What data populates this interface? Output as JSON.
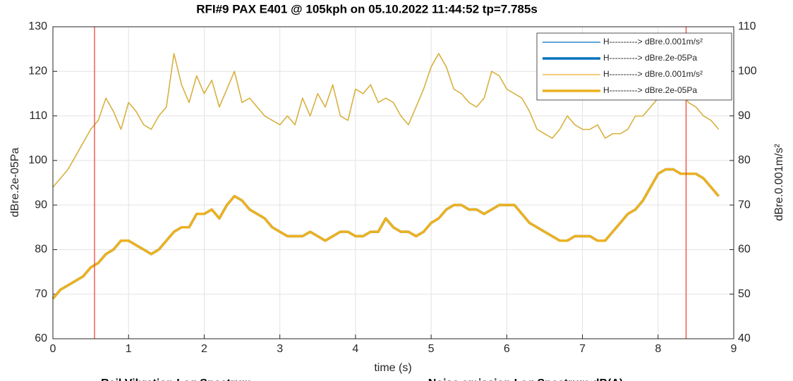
{
  "chart_data": {
    "type": "line",
    "title": "RFI#9   PAX E401 @ 105kph on 05.10.2022 11:44:52  tp=7.785s",
    "x_label": "time (s)",
    "y_label": "dBre.2e-05Pa",
    "y2_label": "dBre.0.001m/s²",
    "xlim": [
      0,
      9
    ],
    "xticks": [
      0,
      1,
      2,
      3,
      4,
      5,
      6,
      7,
      8,
      9
    ],
    "ylim": [
      60,
      130
    ],
    "yticks": [
      60,
      70,
      80,
      90,
      100,
      110,
      120,
      130
    ],
    "y2lim": [
      40,
      110
    ],
    "y2ticks": [
      40,
      50,
      60,
      70,
      80,
      90,
      100,
      110
    ],
    "grid": true,
    "legend": "top-right",
    "vlines": {
      "color": "#e8392f",
      "values": [
        0.55,
        8.37
      ]
    },
    "footer_texts": [
      "Rail Vibration Leq Spectrum",
      "Noise emission Leq Spectrum dB(A)"
    ],
    "x": [
      0,
      0.1,
      0.2,
      0.3,
      0.4,
      0.5,
      0.6,
      0.7,
      0.8,
      0.9,
      1,
      1.1,
      1.2,
      1.3,
      1.4,
      1.5,
      1.6,
      1.7,
      1.8,
      1.9,
      2,
      2.1,
      2.2,
      2.3,
      2.4,
      2.5,
      2.6,
      2.7,
      2.8,
      2.9,
      3,
      3.1,
      3.2,
      3.3,
      3.4,
      3.5,
      3.6,
      3.7,
      3.8,
      3.9,
      4,
      4.1,
      4.2,
      4.3,
      4.4,
      4.5,
      4.6,
      4.7,
      4.8,
      4.9,
      5,
      5.1,
      5.2,
      5.3,
      5.4,
      5.5,
      5.6,
      5.7,
      5.8,
      5.9,
      6,
      6.1,
      6.2,
      6.3,
      6.4,
      6.5,
      6.6,
      6.7,
      6.8,
      6.9,
      7,
      7.1,
      7.2,
      7.3,
      7.4,
      7.5,
      7.6,
      7.7,
      7.8,
      7.9,
      8,
      8.1,
      8.2,
      8.3,
      8.4,
      8.5,
      8.6,
      8.7,
      8.8
    ],
    "series": [
      {
        "name": "H----------> dBre.0.001m/s²",
        "color": "#0072bd",
        "width": 1.3,
        "axis": "y2",
        "values": [
          74,
          76,
          78,
          81,
          84,
          87,
          89,
          94,
          91,
          87,
          93,
          91,
          88,
          87,
          90,
          92,
          104,
          97,
          93,
          99,
          95,
          98,
          92,
          96,
          100,
          93,
          94,
          92,
          90,
          89,
          88,
          90,
          88,
          94,
          90,
          95,
          92,
          97,
          90,
          89,
          96,
          95,
          97,
          93,
          94,
          93,
          90,
          88,
          92,
          96,
          101,
          104,
          101,
          96,
          95,
          93,
          92,
          94,
          100,
          99,
          96,
          95,
          94,
          91,
          87,
          86,
          85,
          87,
          90,
          88,
          87,
          87,
          88,
          85,
          86,
          86,
          87,
          90,
          90,
          92,
          94,
          97,
          98,
          96,
          93,
          92,
          90,
          89,
          87
        ]
      },
      {
        "name": "H----------> dBre.2e-05Pa",
        "color": "#0072bd",
        "width": 3.5,
        "axis": "y",
        "values": [
          69,
          71,
          72,
          73,
          74,
          76,
          77,
          79,
          80,
          82,
          82,
          81,
          80,
          79,
          80,
          82,
          84,
          85,
          85,
          88,
          88,
          89,
          87,
          90,
          92,
          91,
          89,
          88,
          87,
          85,
          84,
          83,
          83,
          83,
          84,
          83,
          82,
          83,
          84,
          84,
          83,
          83,
          84,
          84,
          87,
          85,
          84,
          84,
          83,
          84,
          86,
          87,
          89,
          90,
          90,
          89,
          89,
          88,
          89,
          90,
          90,
          90,
          88,
          86,
          85,
          84,
          83,
          82,
          82,
          83,
          83,
          83,
          82,
          82,
          84,
          86,
          88,
          89,
          91,
          94,
          97,
          98,
          98,
          97,
          97,
          97,
          96,
          94,
          92
        ]
      },
      {
        "name": "H----------> dBre.0.001m/s²",
        "color": "#edb120",
        "width": 1.3,
        "axis": "y2",
        "values": [
          74,
          76,
          78,
          81,
          84,
          87,
          89,
          94,
          91,
          87,
          93,
          91,
          88,
          87,
          90,
          92,
          104,
          97,
          93,
          99,
          95,
          98,
          92,
          96,
          100,
          93,
          94,
          92,
          90,
          89,
          88,
          90,
          88,
          94,
          90,
          95,
          92,
          97,
          90,
          89,
          96,
          95,
          97,
          93,
          94,
          93,
          90,
          88,
          92,
          96,
          101,
          104,
          101,
          96,
          95,
          93,
          92,
          94,
          100,
          99,
          96,
          95,
          94,
          91,
          87,
          86,
          85,
          87,
          90,
          88,
          87,
          87,
          88,
          85,
          86,
          86,
          87,
          90,
          90,
          92,
          94,
          97,
          98,
          96,
          93,
          92,
          90,
          89,
          87
        ]
      },
      {
        "name": "H----------> dBre.2e-05Pa",
        "color": "#edb120",
        "width": 3.5,
        "axis": "y",
        "values": [
          69,
          71,
          72,
          73,
          74,
          76,
          77,
          79,
          80,
          82,
          82,
          81,
          80,
          79,
          80,
          82,
          84,
          85,
          85,
          88,
          88,
          89,
          87,
          90,
          92,
          91,
          89,
          88,
          87,
          85,
          84,
          83,
          83,
          83,
          84,
          83,
          82,
          83,
          84,
          84,
          83,
          83,
          84,
          84,
          87,
          85,
          84,
          84,
          83,
          84,
          86,
          87,
          89,
          90,
          90,
          89,
          89,
          88,
          89,
          90,
          90,
          90,
          88,
          86,
          85,
          84,
          83,
          82,
          82,
          83,
          83,
          83,
          82,
          82,
          84,
          86,
          88,
          89,
          91,
          94,
          97,
          98,
          98,
          97,
          97,
          97,
          96,
          94,
          92
        ]
      }
    ]
  }
}
